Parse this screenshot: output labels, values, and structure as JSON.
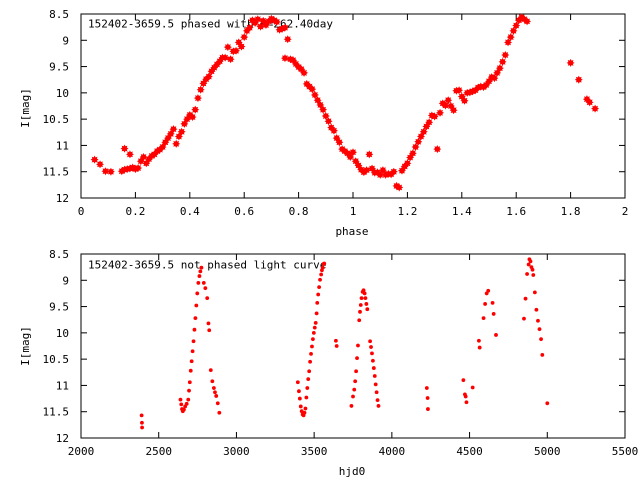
{
  "chart_data": [
    {
      "type": "scatter",
      "title": "152402-3659.5 phased with P=262.40day",
      "xlabel": "phase",
      "ylabel": "I[mag]",
      "xlim": [
        0,
        2
      ],
      "ylim": [
        8.5,
        12
      ],
      "y_inverted": true,
      "xticks": [
        "0",
        "0.2",
        "0.4",
        "0.6",
        "0.8",
        "1",
        "1.2",
        "1.4",
        "1.6",
        "1.8",
        "2"
      ],
      "yticks": [
        "8.5",
        "9",
        "9.5",
        "10",
        "10.5",
        "11",
        "11.5",
        "12"
      ],
      "marker": "star",
      "color": "#ff0000",
      "points": [
        [
          0.05,
          11.27
        ],
        [
          0.07,
          11.36
        ],
        [
          0.09,
          11.49
        ],
        [
          0.11,
          11.5
        ],
        [
          0.15,
          11.49
        ],
        [
          0.16,
          11.46
        ],
        [
          0.17,
          11.45
        ],
        [
          0.18,
          11.44
        ],
        [
          0.16,
          11.06
        ],
        [
          0.18,
          11.17
        ],
        [
          0.19,
          11.42
        ],
        [
          0.2,
          11.45
        ],
        [
          0.21,
          11.43
        ],
        [
          0.22,
          11.3
        ],
        [
          0.23,
          11.22
        ],
        [
          0.24,
          11.34
        ],
        [
          0.25,
          11.26
        ],
        [
          0.26,
          11.2
        ],
        [
          0.27,
          11.17
        ],
        [
          0.28,
          11.11
        ],
        [
          0.29,
          11.08
        ],
        [
          0.3,
          11.03
        ],
        [
          0.31,
          10.94
        ],
        [
          0.32,
          10.86
        ],
        [
          0.33,
          10.78
        ],
        [
          0.34,
          10.69
        ],
        [
          0.35,
          10.97
        ],
        [
          0.36,
          10.83
        ],
        [
          0.37,
          10.74
        ],
        [
          0.38,
          10.59
        ],
        [
          0.39,
          10.5
        ],
        [
          0.4,
          10.42
        ],
        [
          0.41,
          10.46
        ],
        [
          0.42,
          10.32
        ],
        [
          0.43,
          10.1
        ],
        [
          0.44,
          9.94
        ],
        [
          0.45,
          9.82
        ],
        [
          0.46,
          9.74
        ],
        [
          0.47,
          9.69
        ],
        [
          0.48,
          9.59
        ],
        [
          0.49,
          9.52
        ],
        [
          0.5,
          9.46
        ],
        [
          0.51,
          9.4
        ],
        [
          0.52,
          9.33
        ],
        [
          0.53,
          9.33
        ],
        [
          0.54,
          9.13
        ],
        [
          0.55,
          9.36
        ],
        [
          0.56,
          9.21
        ],
        [
          0.57,
          9.2
        ],
        [
          0.58,
          9.04
        ],
        [
          0.59,
          9.12
        ],
        [
          0.6,
          8.94
        ],
        [
          0.61,
          8.82
        ],
        [
          0.62,
          8.76
        ],
        [
          0.63,
          8.62
        ],
        [
          0.64,
          8.67
        ],
        [
          0.65,
          8.6
        ],
        [
          0.66,
          8.74
        ],
        [
          0.67,
          8.63
        ],
        [
          0.68,
          8.71
        ],
        [
          0.69,
          8.64
        ],
        [
          0.7,
          8.59
        ],
        [
          0.71,
          8.62
        ],
        [
          0.72,
          8.65
        ],
        [
          0.73,
          8.8
        ],
        [
          0.74,
          8.78
        ],
        [
          0.75,
          8.76
        ],
        [
          0.76,
          8.98
        ],
        [
          0.75,
          9.34
        ],
        [
          0.77,
          9.36
        ],
        [
          0.78,
          9.38
        ],
        [
          0.79,
          9.45
        ],
        [
          0.8,
          9.51
        ],
        [
          0.81,
          9.55
        ],
        [
          0.82,
          9.62
        ],
        [
          0.83,
          9.83
        ],
        [
          0.84,
          9.88
        ],
        [
          0.85,
          9.93
        ],
        [
          0.86,
          10.04
        ],
        [
          0.87,
          10.14
        ],
        [
          0.88,
          10.23
        ],
        [
          0.89,
          10.32
        ],
        [
          0.9,
          10.44
        ],
        [
          0.91,
          10.54
        ],
        [
          0.92,
          10.66
        ],
        [
          0.93,
          10.72
        ],
        [
          0.94,
          10.86
        ],
        [
          0.95,
          10.94
        ],
        [
          0.96,
          11.07
        ],
        [
          0.97,
          11.11
        ],
        [
          0.98,
          11.15
        ],
        [
          0.99,
          11.22
        ],
        [
          1.0,
          11.13
        ],
        [
          1.01,
          11.3
        ],
        [
          1.02,
          11.38
        ],
        [
          1.03,
          11.46
        ],
        [
          1.04,
          11.51
        ],
        [
          1.05,
          11.47
        ],
        [
          1.06,
          11.17
        ],
        [
          1.07,
          11.44
        ],
        [
          1.08,
          11.52
        ],
        [
          1.09,
          11.51
        ],
        [
          1.1,
          11.56
        ],
        [
          1.11,
          11.47
        ],
        [
          1.12,
          11.56
        ],
        [
          1.13,
          11.54
        ],
        [
          1.14,
          11.55
        ],
        [
          1.15,
          11.5
        ],
        [
          1.16,
          11.77
        ],
        [
          1.17,
          11.8
        ],
        [
          1.18,
          11.48
        ],
        [
          1.19,
          11.4
        ],
        [
          1.2,
          11.34
        ],
        [
          1.21,
          11.23
        ],
        [
          1.22,
          11.15
        ],
        [
          1.23,
          11.03
        ],
        [
          1.24,
          10.93
        ],
        [
          1.25,
          10.83
        ],
        [
          1.26,
          10.74
        ],
        [
          1.27,
          10.64
        ],
        [
          1.28,
          10.56
        ],
        [
          1.29,
          10.43
        ],
        [
          1.3,
          10.45
        ],
        [
          1.31,
          11.07
        ],
        [
          1.32,
          10.38
        ],
        [
          1.33,
          10.2
        ],
        [
          1.34,
          10.24
        ],
        [
          1.35,
          10.14
        ],
        [
          1.36,
          10.25
        ],
        [
          1.37,
          10.33
        ],
        [
          1.38,
          9.96
        ],
        [
          1.39,
          9.95
        ],
        [
          1.4,
          10.07
        ],
        [
          1.41,
          10.15
        ],
        [
          1.42,
          10.0
        ],
        [
          1.43,
          9.99
        ],
        [
          1.44,
          9.97
        ],
        [
          1.45,
          9.95
        ],
        [
          1.46,
          9.9
        ],
        [
          1.47,
          9.88
        ],
        [
          1.48,
          9.89
        ],
        [
          1.49,
          9.85
        ],
        [
          1.5,
          9.78
        ],
        [
          1.51,
          9.7
        ],
        [
          1.52,
          9.72
        ],
        [
          1.53,
          9.62
        ],
        [
          1.54,
          9.53
        ],
        [
          1.55,
          9.41
        ],
        [
          1.56,
          9.28
        ],
        [
          1.57,
          9.04
        ],
        [
          1.58,
          8.94
        ],
        [
          1.59,
          8.82
        ],
        [
          1.6,
          8.72
        ],
        [
          1.61,
          8.62
        ],
        [
          1.62,
          8.56
        ],
        [
          1.63,
          8.6
        ],
        [
          1.64,
          8.64
        ],
        [
          1.8,
          9.43
        ],
        [
          1.83,
          9.75
        ],
        [
          1.86,
          10.12
        ],
        [
          1.87,
          10.18
        ],
        [
          1.89,
          10.3
        ]
      ]
    },
    {
      "type": "scatter",
      "title": "152402-3659.5 not phased light curve",
      "xlabel": "hjd0",
      "ylabel": "I[mag]",
      "xlim": [
        2000,
        5500
      ],
      "ylim": [
        8.5,
        12
      ],
      "y_inverted": true,
      "xticks": [
        "2000",
        "2500",
        "3000",
        "3500",
        "4000",
        "4500",
        "5000",
        "5500"
      ],
      "yticks": [
        "8.5",
        "9",
        "9.5",
        "10",
        "10.5",
        "11",
        "11.5",
        "12"
      ],
      "marker": "dot",
      "color": "#ff0000",
      "points": [
        [
          2390,
          11.57
        ],
        [
          2392,
          11.71
        ],
        [
          2393,
          11.8
        ],
        [
          2640,
          11.27
        ],
        [
          2645,
          11.36
        ],
        [
          2650,
          11.45
        ],
        [
          2655,
          11.49
        ],
        [
          2662,
          11.46
        ],
        [
          2670,
          11.4
        ],
        [
          2680,
          11.35
        ],
        [
          2690,
          11.27
        ],
        [
          2695,
          11.1
        ],
        [
          2700,
          10.94
        ],
        [
          2706,
          10.72
        ],
        [
          2712,
          10.54
        ],
        [
          2718,
          10.35
        ],
        [
          2724,
          10.16
        ],
        [
          2730,
          9.94
        ],
        [
          2736,
          9.72
        ],
        [
          2742,
          9.48
        ],
        [
          2748,
          9.25
        ],
        [
          2755,
          9.05
        ],
        [
          2762,
          8.92
        ],
        [
          2768,
          8.83
        ],
        [
          2775,
          8.76
        ],
        [
          2790,
          9.05
        ],
        [
          2800,
          9.15
        ],
        [
          2812,
          9.34
        ],
        [
          2820,
          9.82
        ],
        [
          2825,
          9.95
        ],
        [
          2835,
          10.71
        ],
        [
          2845,
          10.92
        ],
        [
          2855,
          11.05
        ],
        [
          2862,
          11.13
        ],
        [
          2870,
          11.2
        ],
        [
          2880,
          11.34
        ],
        [
          2890,
          11.52
        ],
        [
          3395,
          10.94
        ],
        [
          3402,
          11.11
        ],
        [
          3408,
          11.25
        ],
        [
          3414,
          11.4
        ],
        [
          3420,
          11.49
        ],
        [
          3426,
          11.55
        ],
        [
          3432,
          11.57
        ],
        [
          3438,
          11.52
        ],
        [
          3444,
          11.44
        ],
        [
          3450,
          11.23
        ],
        [
          3456,
          11.05
        ],
        [
          3462,
          10.88
        ],
        [
          3468,
          10.73
        ],
        [
          3474,
          10.55
        ],
        [
          3480,
          10.4
        ],
        [
          3486,
          10.26
        ],
        [
          3492,
          10.12
        ],
        [
          3498,
          10.0
        ],
        [
          3504,
          9.9
        ],
        [
          3510,
          9.81
        ],
        [
          3516,
          9.63
        ],
        [
          3520,
          9.43
        ],
        [
          3526,
          9.27
        ],
        [
          3532,
          9.13
        ],
        [
          3538,
          8.99
        ],
        [
          3545,
          8.89
        ],
        [
          3550,
          8.81
        ],
        [
          3555,
          8.76
        ],
        [
          3560,
          8.69
        ],
        [
          3565,
          8.68
        ],
        [
          3640,
          10.15
        ],
        [
          3645,
          10.25
        ],
        [
          3740,
          11.39
        ],
        [
          3750,
          11.21
        ],
        [
          3758,
          11.08
        ],
        [
          3764,
          10.92
        ],
        [
          3770,
          10.73
        ],
        [
          3776,
          10.48
        ],
        [
          3782,
          10.24
        ],
        [
          3790,
          9.76
        ],
        [
          3795,
          9.6
        ],
        [
          3800,
          9.47
        ],
        [
          3805,
          9.34
        ],
        [
          3812,
          9.22
        ],
        [
          3818,
          9.19
        ],
        [
          3825,
          9.25
        ],
        [
          3830,
          9.34
        ],
        [
          3836,
          9.45
        ],
        [
          3842,
          9.55
        ],
        [
          3860,
          10.16
        ],
        [
          3866,
          10.27
        ],
        [
          3872,
          10.39
        ],
        [
          3878,
          10.53
        ],
        [
          3884,
          10.67
        ],
        [
          3890,
          10.82
        ],
        [
          3896,
          10.98
        ],
        [
          3902,
          11.13
        ],
        [
          3908,
          11.28
        ],
        [
          3914,
          11.39
        ],
        [
          4225,
          11.05
        ],
        [
          4230,
          11.24
        ],
        [
          4232,
          11.45
        ],
        [
          4460,
          10.9
        ],
        [
          4470,
          11.17
        ],
        [
          4475,
          11.21
        ],
        [
          4480,
          11.32
        ],
        [
          4520,
          11.04
        ],
        [
          4560,
          10.15
        ],
        [
          4565,
          10.28
        ],
        [
          4590,
          9.72
        ],
        [
          4600,
          9.45
        ],
        [
          4610,
          9.25
        ],
        [
          4620,
          9.2
        ],
        [
          4648,
          9.43
        ],
        [
          4655,
          9.64
        ],
        [
          4670,
          10.04
        ],
        [
          4850,
          9.73
        ],
        [
          4860,
          9.35
        ],
        [
          4870,
          8.88
        ],
        [
          4880,
          8.7
        ],
        [
          4885,
          8.6
        ],
        [
          4892,
          8.64
        ],
        [
          4898,
          8.75
        ],
        [
          4905,
          8.8
        ],
        [
          4910,
          8.9
        ],
        [
          4920,
          9.23
        ],
        [
          4930,
          9.56
        ],
        [
          4940,
          9.77
        ],
        [
          4950,
          9.93
        ],
        [
          4960,
          10.12
        ],
        [
          4968,
          10.42
        ],
        [
          5000,
          11.34
        ]
      ]
    }
  ]
}
